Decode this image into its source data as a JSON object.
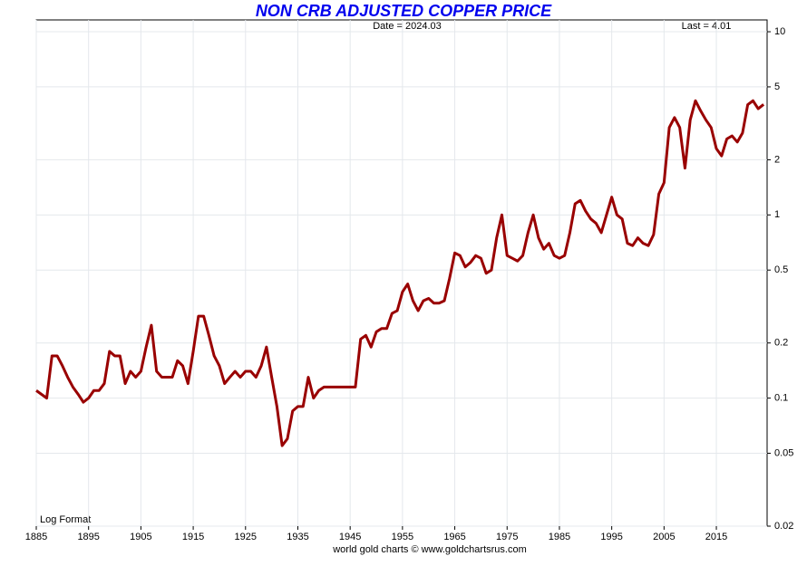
{
  "chart_data": {
    "type": "line",
    "title": "NON CRB ADJUSTED COPPER PRICE",
    "annotations": [
      "Date = 2024.03",
      "Last = 4.01",
      "Log Format"
    ],
    "footer": "world gold charts © www.goldchartsrus.com",
    "log_scale": true,
    "grid": true,
    "xlim": [
      1885,
      2024.7
    ],
    "ylim": [
      0.02,
      11.6
    ],
    "xticks": [
      1885,
      1895,
      1905,
      1915,
      1925,
      1935,
      1945,
      1955,
      1965,
      1975,
      1985,
      1995,
      2005,
      2015
    ],
    "yticks": [
      10,
      5,
      2,
      1,
      0.5,
      0.2,
      0.1,
      0.05,
      0.02
    ],
    "series": [
      {
        "name": "Copper",
        "color": "#990000",
        "x": [
          1885,
          1887,
          1888,
          1889,
          1890,
          1891,
          1892,
          1893,
          1894,
          1895,
          1896,
          1897,
          1898,
          1899,
          1900,
          1901,
          1902,
          1903,
          1904,
          1905,
          1906,
          1907,
          1908,
          1909,
          1910,
          1911,
          1912,
          1913,
          1914,
          1915,
          1916,
          1917,
          1918,
          1919,
          1920,
          1921,
          1922,
          1923,
          1924,
          1925,
          1926,
          1927,
          1928,
          1929,
          1930,
          1931,
          1932,
          1933,
          1934,
          1935,
          1936,
          1937,
          1938,
          1939,
          1940,
          1946,
          1947,
          1948,
          1949,
          1950,
          1951,
          1952,
          1953,
          1954,
          1955,
          1956,
          1957,
          1958,
          1959,
          1960,
          1961,
          1962,
          1963,
          1964,
          1965,
          1966,
          1967,
          1968,
          1969,
          1970,
          1971,
          1972,
          1973,
          1974,
          1975,
          1976,
          1977,
          1978,
          1979,
          1980,
          1981,
          1982,
          1983,
          1984,
          1985,
          1986,
          1987,
          1988,
          1989,
          1990,
          1991,
          1992,
          1993,
          1994,
          1995,
          1996,
          1997,
          1998,
          1999,
          2000,
          2001,
          2002,
          2003,
          2004,
          2005,
          2006,
          2007,
          2008,
          2009,
          2010,
          2011,
          2012,
          2013,
          2014,
          2015,
          2016,
          2017,
          2018,
          2019,
          2020,
          2021,
          2022,
          2023,
          2024.03
        ],
        "values": [
          0.11,
          0.1,
          0.17,
          0.17,
          0.15,
          0.13,
          0.115,
          0.105,
          0.095,
          0.1,
          0.11,
          0.11,
          0.12,
          0.18,
          0.17,
          0.17,
          0.12,
          0.14,
          0.13,
          0.14,
          0.19,
          0.25,
          0.14,
          0.13,
          0.13,
          0.13,
          0.16,
          0.15,
          0.12,
          0.18,
          0.28,
          0.28,
          0.22,
          0.17,
          0.15,
          0.12,
          0.13,
          0.14,
          0.13,
          0.14,
          0.14,
          0.13,
          0.15,
          0.19,
          0.13,
          0.09,
          0.055,
          0.06,
          0.085,
          0.09,
          0.09,
          0.13,
          0.1,
          0.11,
          0.115,
          0.115,
          0.21,
          0.22,
          0.19,
          0.23,
          0.24,
          0.24,
          0.29,
          0.3,
          0.38,
          0.42,
          0.34,
          0.3,
          0.34,
          0.35,
          0.33,
          0.33,
          0.34,
          0.45,
          0.62,
          0.6,
          0.52,
          0.55,
          0.6,
          0.58,
          0.48,
          0.5,
          0.75,
          1.0,
          0.6,
          0.58,
          0.56,
          0.6,
          0.8,
          1.0,
          0.75,
          0.65,
          0.7,
          0.6,
          0.58,
          0.6,
          0.8,
          1.15,
          1.2,
          1.05,
          0.95,
          0.9,
          0.8,
          1.0,
          1.25,
          1.0,
          0.95,
          0.7,
          0.68,
          0.75,
          0.7,
          0.68,
          0.78,
          1.3,
          1.5,
          3.0,
          3.4,
          3.0,
          1.8,
          3.3,
          4.2,
          3.7,
          3.3,
          3.0,
          2.3,
          2.1,
          2.6,
          2.7,
          2.5,
          2.8,
          4.0,
          4.2,
          3.8,
          4.01
        ]
      }
    ]
  }
}
